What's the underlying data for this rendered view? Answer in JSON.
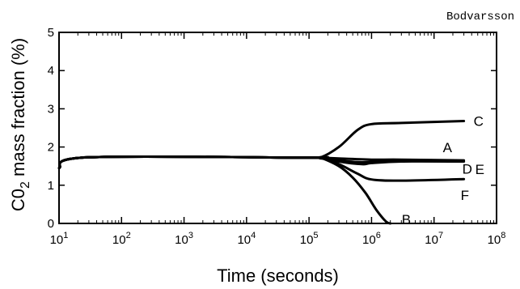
{
  "header": {
    "author": "Bodvarsson"
  },
  "chart_data": {
    "type": "line",
    "xlabel": "Time (seconds)",
    "ylabel": {
      "prefix": "C0",
      "subscript": "2",
      "suffix": " mass fraction (%)"
    },
    "xscale": "log",
    "xlim": [
      10,
      100000000
    ],
    "ylim": [
      0,
      5
    ],
    "xticks": [
      {
        "base": "10",
        "exp": "1"
      },
      {
        "base": "10",
        "exp": "2"
      },
      {
        "base": "10",
        "exp": "3"
      },
      {
        "base": "10",
        "exp": "4"
      },
      {
        "base": "10",
        "exp": "5"
      },
      {
        "base": "10",
        "exp": "6"
      },
      {
        "base": "10",
        "exp": "7"
      },
      {
        "base": "10",
        "exp": "8"
      }
    ],
    "yticks": [
      "0",
      "1",
      "2",
      "3",
      "4",
      "5"
    ],
    "series": [
      {
        "name": "C",
        "x": [
          10,
          30,
          100000,
          150000,
          300000,
          600000,
          1000000,
          3000000,
          30000000
        ],
        "y": [
          1.45,
          1.73,
          1.72,
          1.72,
          2.0,
          2.45,
          2.6,
          2.63,
          2.68
        ]
      },
      {
        "name": "A",
        "x": [
          10,
          30,
          100000,
          150000,
          300000,
          1000000,
          3000000,
          30000000
        ],
        "y": [
          1.45,
          1.73,
          1.72,
          1.72,
          1.7,
          1.67,
          1.67,
          1.65
        ]
      },
      {
        "name": "D",
        "x": [
          10,
          30,
          100000,
          150000,
          300000,
          700000,
          1000000,
          3000000,
          30000000
        ],
        "y": [
          1.45,
          1.73,
          1.72,
          1.72,
          1.62,
          1.55,
          1.58,
          1.62,
          1.62
        ]
      },
      {
        "name": "E",
        "x": [
          10,
          30,
          100000,
          150000,
          300000,
          700000,
          1500000,
          4000000,
          30000000
        ],
        "y": [
          1.45,
          1.73,
          1.72,
          1.72,
          1.65,
          1.6,
          1.63,
          1.65,
          1.63
        ]
      },
      {
        "name": "F",
        "x": [
          10,
          30,
          100000,
          150000,
          300000,
          600000,
          1000000,
          3000000,
          30000000
        ],
        "y": [
          1.45,
          1.73,
          1.72,
          1.72,
          1.55,
          1.3,
          1.15,
          1.12,
          1.16
        ]
      },
      {
        "name": "B",
        "x": [
          10,
          30,
          100000,
          150000,
          300000,
          500000,
          800000,
          1200000,
          1700000,
          2000000
        ],
        "y": [
          1.45,
          1.73,
          1.72,
          1.72,
          1.5,
          1.2,
          0.8,
          0.35,
          0.05,
          0.0
        ]
      }
    ],
    "labels": [
      {
        "text": "C",
        "series": "C"
      },
      {
        "text": "A",
        "series": "A"
      },
      {
        "text": "D",
        "series": "D"
      },
      {
        "text": "E",
        "series": "E"
      },
      {
        "text": "F",
        "series": "F"
      },
      {
        "text": "B",
        "series": "B"
      }
    ],
    "grid": false,
    "legend": "none"
  }
}
